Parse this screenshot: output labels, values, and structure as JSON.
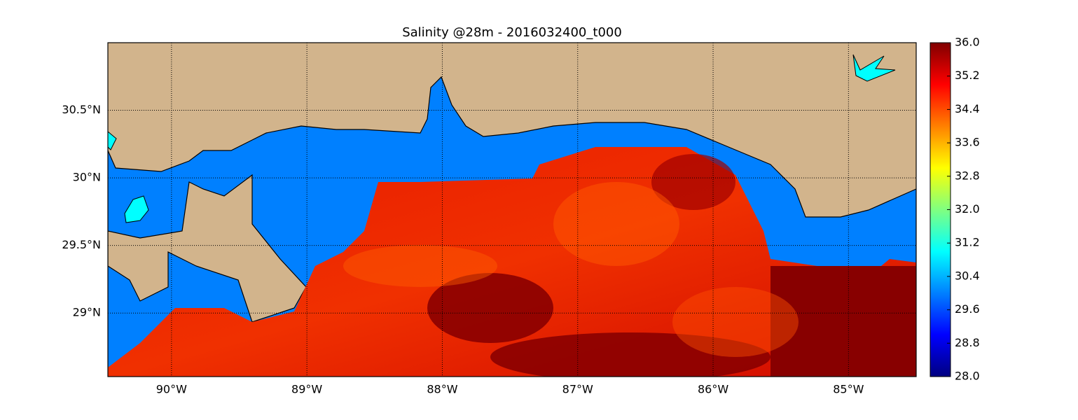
{
  "map": {
    "title": "Salinity @28m - 2016032400_t000",
    "xlim": [
      -90.47,
      -84.5
    ],
    "ylim": [
      28.53,
      31.0
    ],
    "xticks": [
      {
        "value": -90,
        "label": "90°W"
      },
      {
        "value": -89,
        "label": "89°W"
      },
      {
        "value": -88,
        "label": "88°W"
      },
      {
        "value": -87,
        "label": "87°W"
      },
      {
        "value": -86,
        "label": "86°W"
      },
      {
        "value": -85,
        "label": "85°W"
      }
    ],
    "yticks": [
      {
        "value": 29,
        "label": "29°N"
      },
      {
        "value": 29.5,
        "label": "29.5°N"
      },
      {
        "value": 30,
        "label": "30°N"
      },
      {
        "value": 30.5,
        "label": "30.5°N"
      }
    ],
    "grid": true,
    "colorbar": {
      "colormap": "jet",
      "lim": [
        28,
        36
      ],
      "ticks": [
        {
          "value": 28,
          "label": "28.0"
        },
        28.8,
        29.6,
        30.4,
        31.2,
        {
          "value": 32,
          "label": "32.0"
        },
        32.8,
        33.6,
        34.4,
        35.2,
        {
          "value": 36,
          "label": "36.0"
        }
      ]
    }
  }
}
